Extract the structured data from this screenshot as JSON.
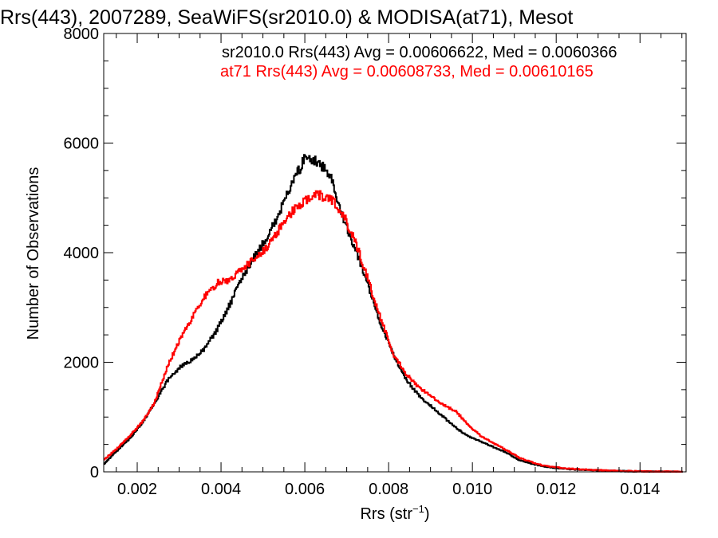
{
  "chart_data": {
    "type": "line",
    "title": "Rrs(443), 2007289, SeaWiFS(sr2010.0) & MODISA(at71), Mesot",
    "xlabel": "Rrs (str",
    "xlabel_sup": "−1",
    "xlabel_end": ")",
    "ylabel": "Number of Observations",
    "xlim": [
      0.0012,
      0.0151
    ],
    "ylim": [
      0,
      8000
    ],
    "x_ticks": [
      {
        "value": 0.002,
        "label": "0.002"
      },
      {
        "value": 0.004,
        "label": "0.004"
      },
      {
        "value": 0.006,
        "label": "0.006"
      },
      {
        "value": 0.008,
        "label": "0.008"
      },
      {
        "value": 0.01,
        "label": "0.010"
      },
      {
        "value": 0.012,
        "label": "0.012"
      },
      {
        "value": 0.014,
        "label": "0.014"
      }
    ],
    "y_ticks": [
      {
        "value": 0,
        "label": "0"
      },
      {
        "value": 2000,
        "label": "2000"
      },
      {
        "value": 4000,
        "label": "4000"
      },
      {
        "value": 6000,
        "label": "6000"
      },
      {
        "value": 8000,
        "label": "8000"
      }
    ],
    "legend": [
      {
        "text": "sr2010.0 Rrs(443) Avg = 0.00606622, Med = 0.0060366",
        "color": "#000000"
      },
      {
        "text": "at71 Rrs(443) Avg = 0.00608733, Med = 0.00610165",
        "color": "#ff0000"
      }
    ],
    "legend_position": "top-right",
    "series": [
      {
        "color": "#000000",
        "x": [
          0.0012,
          0.0015,
          0.0018,
          0.0021,
          0.0024,
          0.0027,
          0.003,
          0.0033,
          0.0036,
          0.0039,
          0.0042,
          0.0045,
          0.0048,
          0.0051,
          0.0054,
          0.0057,
          0.006,
          0.0063,
          0.0066,
          0.0069,
          0.0072,
          0.0075,
          0.0078,
          0.0081,
          0.0084,
          0.0087,
          0.009,
          0.0093,
          0.0096,
          0.0099,
          0.0102,
          0.0105,
          0.0108,
          0.0111,
          0.0114,
          0.0117,
          0.012,
          0.0123,
          0.0126,
          0.0129,
          0.0132,
          0.0135,
          0.0138,
          0.0141,
          0.0144,
          0.0147,
          0.015
        ],
        "y": [
          150,
          380,
          600,
          880,
          1250,
          1650,
          1900,
          2050,
          2250,
          2600,
          3050,
          3550,
          3950,
          4300,
          4750,
          5300,
          5720,
          5650,
          5400,
          4650,
          4050,
          3400,
          2700,
          2150,
          1700,
          1400,
          1200,
          1000,
          800,
          650,
          550,
          450,
          350,
          220,
          150,
          100,
          70,
          50,
          40,
          30,
          20,
          15,
          10,
          5,
          3,
          2,
          1
        ]
      },
      {
        "color": "#ff0000",
        "x": [
          0.0012,
          0.0015,
          0.0018,
          0.0021,
          0.0024,
          0.0027,
          0.003,
          0.0033,
          0.0036,
          0.0039,
          0.0042,
          0.0045,
          0.0048,
          0.0051,
          0.0054,
          0.0057,
          0.006,
          0.0063,
          0.0066,
          0.0069,
          0.0072,
          0.0075,
          0.0078,
          0.0081,
          0.0084,
          0.0087,
          0.009,
          0.0093,
          0.0096,
          0.0099,
          0.0102,
          0.0105,
          0.0108,
          0.0111,
          0.0114,
          0.0117,
          0.012,
          0.0123,
          0.0126,
          0.0129,
          0.0132,
          0.0135,
          0.0138,
          0.0141,
          0.0144,
          0.0147,
          0.015
        ],
        "y": [
          220,
          420,
          650,
          900,
          1250,
          1900,
          2400,
          2800,
          3200,
          3450,
          3500,
          3700,
          3900,
          4100,
          4450,
          4750,
          4950,
          5050,
          5000,
          4700,
          4200,
          3500,
          2800,
          2150,
          1800,
          1550,
          1380,
          1220,
          1100,
          850,
          650,
          520,
          400,
          260,
          180,
          110,
          80,
          60,
          45,
          35,
          25,
          18,
          12,
          8,
          5,
          3,
          2
        ]
      }
    ]
  }
}
